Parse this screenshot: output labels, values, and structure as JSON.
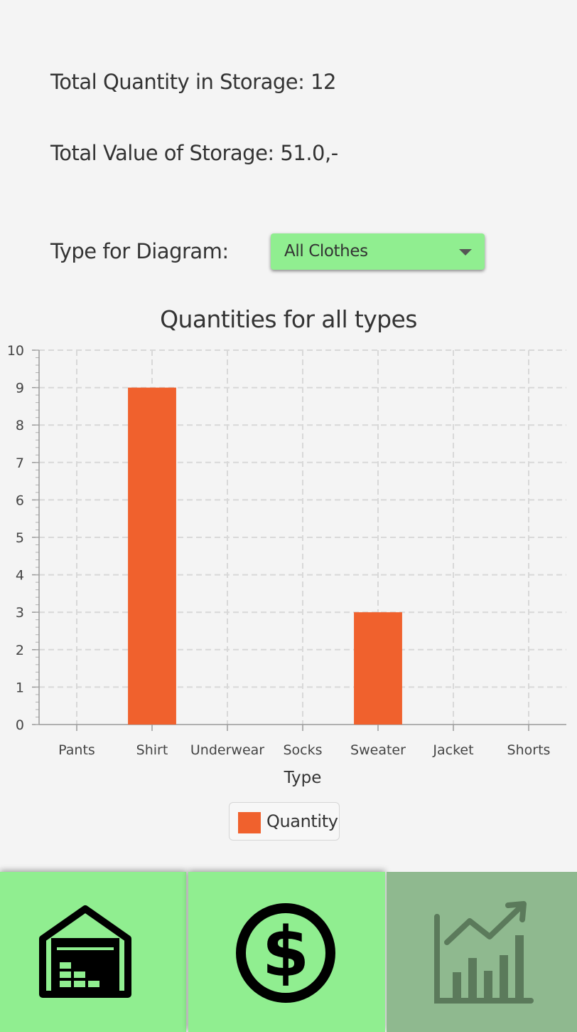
{
  "summary": {
    "total_quantity_label": "Total Quantity in Storage: 12",
    "total_value_label": "Total Value of Storage: 51.0,-"
  },
  "diagram_selector": {
    "label": "Type for Diagram:",
    "selected": "All Clothes"
  },
  "chart_data": {
    "type": "bar",
    "title": "Quantities for all types",
    "xlabel": "Type",
    "ylabel": "",
    "categories": [
      "Pants",
      "Shirt",
      "Underwear",
      "Socks",
      "Sweater",
      "Jacket",
      "Shorts"
    ],
    "series": [
      {
        "name": "Quantity",
        "values": [
          0,
          9,
          0,
          0,
          3,
          0,
          0
        ],
        "color": "#f0612d"
      }
    ],
    "ylim": [
      0,
      10
    ],
    "yticks": [
      0,
      1,
      2,
      3,
      4,
      5,
      6,
      7,
      8,
      9,
      10
    ],
    "grid": true,
    "legend": "bottom-center"
  },
  "legend": {
    "label": "Quantity"
  },
  "nav": {
    "items": [
      {
        "icon": "warehouse-icon",
        "active": false
      },
      {
        "icon": "dollar-icon",
        "active": false
      },
      {
        "icon": "chart-growth-icon",
        "active": true
      }
    ]
  },
  "colors": {
    "accent": "#90ee90",
    "active_tab": "#8fb98f",
    "bar": "#f0612d",
    "background": "#f4f4f4"
  }
}
